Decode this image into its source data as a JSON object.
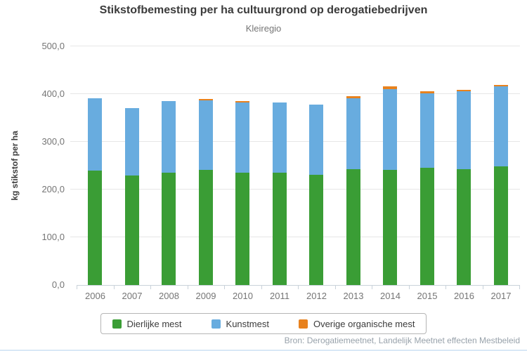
{
  "chart_data": {
    "type": "bar",
    "stacked": true,
    "title": "Stikstofbemesting per ha cultuurgrond op derogatiebedrijven",
    "subtitle": "Kleiregio",
    "ylabel": "kg stikstof per ha",
    "xlabel": "",
    "ylim": [
      0,
      500
    ],
    "ytick_values": [
      0,
      100,
      200,
      300,
      400,
      500
    ],
    "ytick_labels": [
      "0,0",
      "100,0",
      "200,0",
      "300,0",
      "400,0",
      "500,0"
    ],
    "grid": "horizontal",
    "legend_position": "bottom",
    "categories": [
      "2006",
      "2007",
      "2008",
      "2009",
      "2010",
      "2011",
      "2012",
      "2013",
      "2014",
      "2015",
      "2016",
      "2017"
    ],
    "series": [
      {
        "name": "Dierlijke mest",
        "color": "#3a9d35",
        "values": [
          240,
          229,
          235,
          241,
          235,
          236,
          231,
          243,
          241,
          246,
          243,
          249
        ]
      },
      {
        "name": "Kunstmest",
        "color": "#68acdf",
        "values": [
          151,
          141,
          150,
          146,
          148,
          147,
          147,
          148,
          170,
          156,
          163,
          167
        ]
      },
      {
        "name": "Overige organische mest",
        "color": "#e8821e",
        "values": [
          0,
          0,
          0,
          3,
          3,
          0,
          0,
          4,
          5,
          4,
          3,
          3
        ]
      }
    ],
    "totals": [
      391,
      370,
      385,
      390,
      386,
      383,
      378,
      395,
      416,
      406,
      409,
      419
    ],
    "source": "Bron: Derogatiemeetnet, Landelijk Meetnet effecten Mestbeleid"
  },
  "colors": {
    "title": "#3b3b3b",
    "muted_text": "#757575",
    "gridline": "#e6e6e6",
    "axis_line": "#c9d2da",
    "source_text": "#98a2ab",
    "legend_border": "#b5b5b5"
  }
}
